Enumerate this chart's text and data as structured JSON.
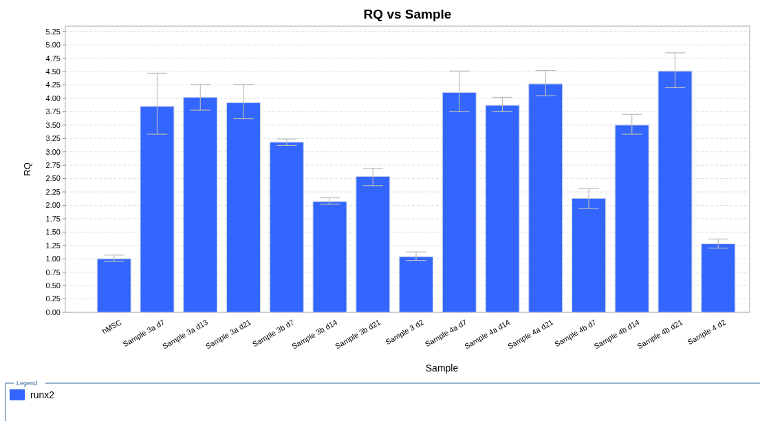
{
  "chart_data": {
    "type": "bar",
    "title": "RQ vs Sample",
    "xlabel": "Sample",
    "ylabel": "RQ",
    "legend_title": "Legend",
    "categories": [
      "hMSC",
      "Sample 3a d7",
      "Sample 3a d13",
      "Sample 3a d21",
      "Sample 3b d7",
      "Sample 3b d14",
      "Sample 3b d21",
      "Sample 3 d2",
      "Sample 4a d7",
      "Sample 4a d14",
      "Sample 4a d21",
      "Sample 4b d7",
      "Sample 4b d14",
      "Sample 4b d21",
      "Sample 4 d2"
    ],
    "series": [
      {
        "name": "runx2",
        "color": "#3366ff",
        "values": [
          1.0,
          3.85,
          4.02,
          3.92,
          3.18,
          2.07,
          2.54,
          1.04,
          4.11,
          3.87,
          4.27,
          2.13,
          3.5,
          4.51,
          1.28
        ],
        "errors": [
          [
            0.95,
            1.07
          ],
          [
            3.33,
            4.47
          ],
          [
            3.78,
            4.26
          ],
          [
            3.62,
            4.26
          ],
          [
            3.12,
            3.24
          ],
          [
            2.02,
            2.14
          ],
          [
            2.37,
            2.69
          ],
          [
            0.97,
            1.13
          ],
          [
            3.75,
            4.51
          ],
          [
            3.75,
            4.02
          ],
          [
            4.05,
            4.52
          ],
          [
            1.94,
            2.31
          ],
          [
            3.33,
            3.7
          ],
          [
            4.2,
            4.85
          ],
          [
            1.2,
            1.37
          ]
        ]
      }
    ],
    "ylim": [
      0,
      5.35
    ],
    "yticks": [
      {
        "value": 0,
        "label": "0.00"
      },
      {
        "value": 0.25,
        "label": "0.25"
      },
      {
        "value": 0.5,
        "label": "0.50"
      },
      {
        "value": 0.75,
        "label": "0.75"
      },
      {
        "value": 1,
        "label": "1.00"
      },
      {
        "value": 1.25,
        "label": "1.25"
      },
      {
        "value": 1.5,
        "label": "1.50"
      },
      {
        "value": 1.75,
        "label": "1.75"
      },
      {
        "value": 2,
        "label": "2.00"
      },
      {
        "value": 2.25,
        "label": "2.25"
      },
      {
        "value": 2.5,
        "label": "2.50"
      },
      {
        "value": 2.75,
        "label": "2.75"
      },
      {
        "value": 3,
        "label": "3.00"
      },
      {
        "value": 3.25,
        "label": "3.25"
      },
      {
        "value": 3.5,
        "label": "3.50"
      },
      {
        "value": 3.75,
        "label": "3.75"
      },
      {
        "value": 4,
        "label": "4.00"
      },
      {
        "value": 4.25,
        "label": "4.25"
      },
      {
        "value": 4.5,
        "label": "4.50"
      },
      {
        "value": 4.75,
        "label": "4.75"
      },
      {
        "value": 5,
        "label": "5.00"
      },
      {
        "value": 5.25,
        "label": "5.25"
      }
    ],
    "grid": "y",
    "legend": "bottom"
  }
}
